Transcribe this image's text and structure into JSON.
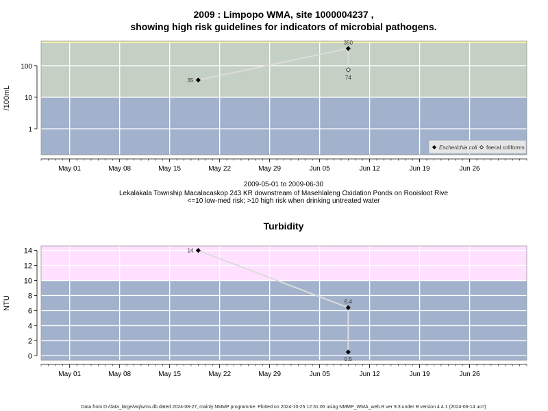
{
  "chart_data": [
    {
      "type": "scatter",
      "title": "2009 : Limpopo WMA, site 1000004237 ,",
      "subtitle": "showing high risk guidelines for indicators of microbial pathogens.",
      "ylabel": "/100mL",
      "yscale": "log",
      "yticks": [
        "1",
        "10",
        "100"
      ],
      "xlim": [
        "2009-04-27",
        "2009-07-04"
      ],
      "xticks": [
        "May 01",
        "May 08",
        "May 15",
        "May 22",
        "May 29",
        "Jun 05",
        "Jun 12",
        "Jun 19",
        "Jun 26"
      ],
      "xtick_dates": [
        "2009-05-01",
        "2009-05-08",
        "2009-05-15",
        "2009-05-22",
        "2009-05-29",
        "2009-06-05",
        "2009-06-12",
        "2009-06-19",
        "2009-06-26"
      ],
      "ylim": [
        0.15,
        600
      ],
      "zones": [
        {
          "from": 0.15,
          "to": 10,
          "color": "#a2b2cc"
        },
        {
          "from": 10,
          "to": 600,
          "color": "#c5d0c4"
        }
      ],
      "series": [
        {
          "name": "Escherichia coli",
          "marker": "filled-diamond",
          "points": [
            {
              "x": "2009-05-19",
              "y": 35,
              "label": "35"
            },
            {
              "x": "2009-06-09",
              "y": 350,
              "label": "350"
            }
          ]
        },
        {
          "name": "faecal coliforms",
          "marker": "open-diamond",
          "points": [
            {
              "x": "2009-06-09",
              "y": 74,
              "label": "74"
            }
          ]
        }
      ],
      "legend": "bottom-right",
      "caption": [
        "2009-05-01 to 2009-06-30",
        "Lekalakala Township Macalacaskop 243 KR downstream of Masehlaleng Oxidation Ponds on Rooisloot Rive",
        "<=10 low-med risk; >10 high risk when drinking untreated water"
      ],
      "grid": true
    },
    {
      "type": "scatter",
      "title": "Turbidity",
      "ylabel": "NTU",
      "yticks": [
        "0",
        "2",
        "4",
        "6",
        "8",
        "10",
        "12",
        "14"
      ],
      "ylim": [
        -0.6,
        14.6
      ],
      "xlim": [
        "2009-04-27",
        "2009-07-04"
      ],
      "xticks": [
        "May 01",
        "May 08",
        "May 15",
        "May 22",
        "May 29",
        "Jun 05",
        "Jun 12",
        "Jun 19",
        "Jun 26"
      ],
      "xtick_dates": [
        "2009-05-01",
        "2009-05-08",
        "2009-05-15",
        "2009-05-22",
        "2009-05-29",
        "2009-06-05",
        "2009-06-12",
        "2009-06-19",
        "2009-06-26"
      ],
      "zones": [
        {
          "from": -0.6,
          "to": 10,
          "color": "#a2b2cc"
        },
        {
          "from": 10,
          "to": 14.6,
          "color": "#ffe0ff"
        }
      ],
      "series": [
        {
          "marker": "filled-diamond",
          "points": [
            {
              "x": "2009-05-19",
              "y": 14,
              "label": "14"
            },
            {
              "x": "2009-06-09",
              "y": 6.4,
              "label": "6.4"
            },
            {
              "x": "2009-06-09",
              "y": 0.5,
              "label": "0.5"
            }
          ]
        }
      ],
      "grid": true
    }
  ],
  "footer": "Data from D:/data_large/wq/wms.db dated 2024-08-27, mainly NMMP programme. Plotted on 2024-10-25 12:31:06 using NMMP_WMA_web.R ver 9.3 under R version 4.4.1 (2024-06-14 ucrt)"
}
